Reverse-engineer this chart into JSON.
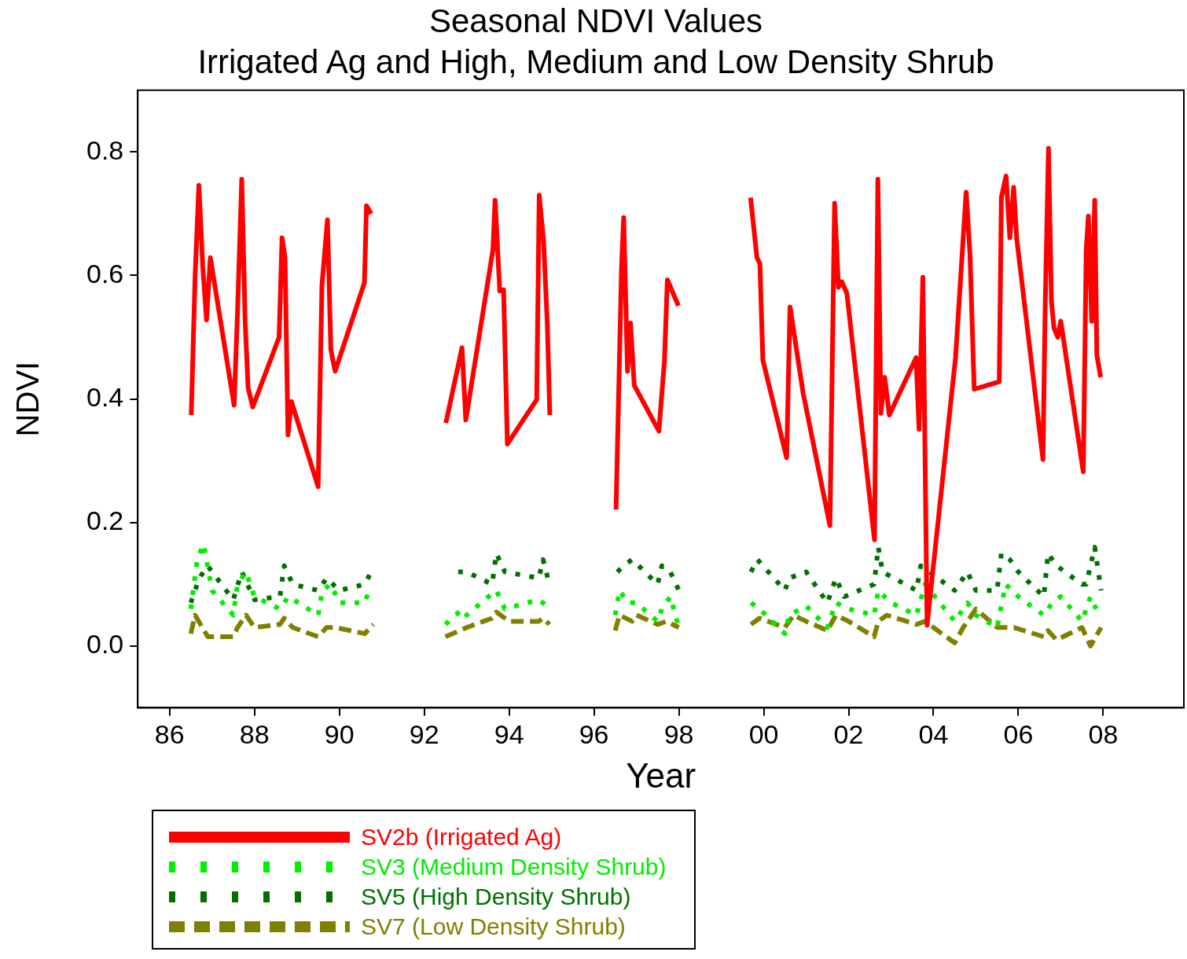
{
  "chart_data": {
    "type": "line",
    "title": "Seasonal NDVI Values",
    "subtitle": "Irrigated Ag and High, Medium and Low Density Shrub",
    "xlabel": "Year",
    "ylabel": "NDVI",
    "xlim": [
      1985.25,
      2009.9
    ],
    "ylim": [
      -0.1,
      0.9
    ],
    "xticks": [
      {
        "value": 1986,
        "label": "86"
      },
      {
        "value": 1988,
        "label": "88"
      },
      {
        "value": 1990,
        "label": "90"
      },
      {
        "value": 1992,
        "label": "92"
      },
      {
        "value": 1994,
        "label": "94"
      },
      {
        "value": 1996,
        "label": "96"
      },
      {
        "value": 1998,
        "label": "98"
      },
      {
        "value": 2000,
        "label": "00"
      },
      {
        "value": 2002,
        "label": "02"
      },
      {
        "value": 2004,
        "label": "04"
      },
      {
        "value": 2006,
        "label": "06"
      },
      {
        "value": 2008,
        "label": "08"
      }
    ],
    "yticks": [
      {
        "value": 0,
        "label": "0.0"
      },
      {
        "value": 0.2,
        "label": "0.2"
      },
      {
        "value": 0.4,
        "label": "0.4"
      },
      {
        "value": 0.6,
        "label": "0.6"
      },
      {
        "value": 0.8,
        "label": "0.8"
      }
    ],
    "legend": "bottom",
    "series": [
      {
        "name": "SV2b (Irrigated Ag)",
        "color": "#ff0000",
        "line_style": "solid",
        "x": [
          1986.51,
          1986.6,
          1986.69,
          1986.78,
          1986.87,
          1986.96,
          1987.52,
          1987.6,
          1987.7,
          1987.78,
          1987.85,
          1987.96,
          1988.58,
          1988.65,
          1988.72,
          1988.79,
          1988.87,
          1989.5,
          1989.59,
          1989.72,
          1989.8,
          1989.9,
          1990.59,
          1990.64,
          1990.75,
          1991.5,
          1992.51,
          1992.89,
          1992.98,
          1993.62,
          1993.67,
          1993.78,
          1993.87,
          1993.96,
          1994.65,
          1994.71,
          1994.81,
          1994.9,
          1994.96,
          1995.7,
          1996.52,
          1996.65,
          1996.7,
          1996.79,
          1996.86,
          1996.95,
          1997.53,
          1997.66,
          1997.73,
          1997.99,
          1998.8,
          1999.69,
          1999.84,
          1999.91,
          1999.98,
          2000.54,
          2000.62,
          2000.93,
          2001.56,
          2001.67,
          2001.76,
          2001.84,
          2001.96,
          2002.61,
          2002.69,
          2002.76,
          2002.85,
          2002.96,
          2003.59,
          2003.66,
          2003.75,
          2003.85,
          2004.52,
          2004.77,
          2004.86,
          2004.96,
          2005.55,
          2005.6,
          2005.71,
          2005.8,
          2005.89,
          2005.96,
          2006.58,
          2006.63,
          2006.71,
          2006.78,
          2006.84,
          2006.93,
          2007.0,
          2007.53,
          2007.6,
          2007.65,
          2007.73,
          2007.8,
          2007.85,
          2007.94
        ],
        "values": [
          0.374,
          0.597,
          0.746,
          0.616,
          0.528,
          0.629,
          0.39,
          0.539,
          0.756,
          0.526,
          0.418,
          0.387,
          0.5,
          0.661,
          0.629,
          0.342,
          0.396,
          0.258,
          0.584,
          0.69,
          0.48,
          0.445,
          0.588,
          0.713,
          0.7,
          null,
          0.361,
          0.483,
          0.366,
          0.642,
          0.722,
          0.575,
          0.577,
          0.327,
          0.399,
          0.73,
          0.658,
          0.523,
          0.374,
          null,
          0.221,
          0.614,
          0.694,
          0.445,
          0.523,
          0.422,
          0.348,
          0.461,
          0.593,
          0.551,
          null,
          0.726,
          0.629,
          0.619,
          0.463,
          0.305,
          0.549,
          0.409,
          0.195,
          0.717,
          0.581,
          0.59,
          0.571,
          0.172,
          0.756,
          0.377,
          0.435,
          0.374,
          0.467,
          0.351,
          0.597,
          0.034,
          0.467,
          0.735,
          0.636,
          0.416,
          0.428,
          0.726,
          0.761,
          0.661,
          0.743,
          0.661,
          0.302,
          0.539,
          0.806,
          0.558,
          0.515,
          0.5,
          0.526,
          0.282,
          0.642,
          0.696,
          0.526,
          0.722,
          0.471,
          0.435
        ]
      },
      {
        "name": "SV3 (Medium Density Shrub)",
        "color": "#00ee00",
        "line_style": "dotted",
        "x": [
          1986.5,
          1986.65,
          1986.8,
          1987.0,
          1987.5,
          1987.6,
          1987.8,
          1988.0,
          1988.6,
          1988.8,
          1989.5,
          1989.6,
          1989.8,
          1990.0,
          1990.6,
          1990.7,
          1991.5,
          1992.5,
          1992.9,
          1993.0,
          1993.6,
          1993.7,
          1993.9,
          1994.7,
          1994.9,
          1995.7,
          1996.5,
          1996.6,
          1996.8,
          1997.0,
          1997.5,
          1997.6,
          1997.8,
          1998.0,
          1998.8,
          1999.7,
          1999.9,
          2000.5,
          2000.6,
          2001.0,
          2001.5,
          2001.7,
          2002.0,
          2002.6,
          2002.7,
          2003.0,
          2003.6,
          2003.8,
          2004.5,
          2004.8,
          2005.0,
          2005.5,
          2005.7,
          2006.0,
          2006.6,
          2006.8,
          2007.0,
          2007.5,
          2007.7,
          2007.9
        ],
        "values": [
          0.06,
          0.14,
          0.165,
          0.09,
          0.05,
          0.1,
          0.12,
          0.08,
          0.06,
          0.08,
          0.05,
          0.09,
          0.1,
          0.07,
          0.07,
          0.09,
          null,
          0.035,
          0.06,
          0.05,
          0.085,
          0.09,
          0.06,
          0.075,
          0.065,
          null,
          0.05,
          0.09,
          0.07,
          0.07,
          0.04,
          0.06,
          0.08,
          0.03,
          null,
          0.07,
          0.06,
          0.02,
          0.05,
          0.065,
          0.03,
          0.07,
          0.06,
          0.05,
          0.09,
          0.07,
          0.05,
          0.1,
          0.04,
          0.07,
          0.05,
          0.03,
          0.1,
          0.08,
          0.05,
          0.07,
          0.08,
          0.04,
          0.08,
          0.05
        ]
      },
      {
        "name": "SV5 (High Density Shrub)",
        "color": "#007000",
        "line_style": "dotted",
        "x": [
          1986.5,
          1986.7,
          1986.9,
          1987.0,
          1987.5,
          1987.7,
          1987.9,
          1988.0,
          1988.6,
          1988.7,
          1988.9,
          1989.5,
          1989.7,
          1990.0,
          1990.6,
          1990.75,
          1991.5,
          1992.8,
          1993.0,
          1993.6,
          1993.7,
          1993.9,
          1994.7,
          1994.8,
          1994.95,
          1995.7,
          1996.55,
          1996.7,
          1996.9,
          1997.5,
          1997.6,
          1997.8,
          1998.0,
          1998.8,
          1999.7,
          1999.85,
          2000.5,
          2000.6,
          2001.0,
          2001.5,
          2001.7,
          2001.9,
          2002.6,
          2002.7,
          2002.8,
          2003.6,
          2003.7,
          2003.9,
          2004.5,
          2004.8,
          2005.0,
          2005.5,
          2005.6,
          2005.8,
          2006.0,
          2006.6,
          2006.7,
          2006.9,
          2007.5,
          2007.6,
          2007.8,
          2007.95
        ],
        "values": [
          0.07,
          0.11,
          0.13,
          0.12,
          0.075,
          0.12,
          0.09,
          0.075,
          0.08,
          0.13,
          0.1,
          0.09,
          0.11,
          0.09,
          0.1,
          0.12,
          null,
          0.12,
          0.12,
          0.1,
          0.15,
          0.12,
          0.11,
          0.14,
          0.1,
          null,
          0.12,
          0.13,
          0.14,
          0.1,
          0.13,
          0.12,
          0.09,
          null,
          0.12,
          0.14,
          0.09,
          0.11,
          0.12,
          0.07,
          0.11,
          0.08,
          0.1,
          0.16,
          0.12,
          0.09,
          0.13,
          0.12,
          0.09,
          0.12,
          0.09,
          0.09,
          0.15,
          0.14,
          0.12,
          0.08,
          0.15,
          0.13,
          0.1,
          0.1,
          0.16,
          0.09
        ]
      },
      {
        "name": "SV7 (Low Density Shrub)",
        "color": "#808000",
        "line_style": "dashed",
        "x": [
          1986.5,
          1986.6,
          1986.9,
          1987.0,
          1987.5,
          1987.6,
          1987.8,
          1988.0,
          1988.6,
          1988.7,
          1988.9,
          1989.5,
          1989.7,
          1989.9,
          1990.6,
          1990.8,
          1991.5,
          1992.5,
          1993.0,
          1993.6,
          1993.7,
          1994.0,
          1994.7,
          1994.8,
          1994.95,
          1995.7,
          1996.5,
          1996.6,
          1996.9,
          1997.0,
          1997.5,
          1997.7,
          1998.0,
          1998.8,
          1999.7,
          1999.9,
          2000.5,
          2000.7,
          2001.0,
          2001.5,
          2001.7,
          2002.0,
          2002.6,
          2002.7,
          2002.9,
          2003.6,
          2003.8,
          2004.5,
          2004.7,
          2005.0,
          2005.5,
          2005.6,
          2005.9,
          2006.6,
          2006.7,
          2006.9,
          2007.5,
          2007.7,
          2007.95
        ],
        "values": [
          0.02,
          0.05,
          0.015,
          0.015,
          0.015,
          0.03,
          0.05,
          0.03,
          0.035,
          0.045,
          0.03,
          0.015,
          0.03,
          0.03,
          0.02,
          0.035,
          null,
          0.015,
          0.03,
          0.045,
          0.055,
          0.04,
          0.04,
          0.045,
          0.035,
          null,
          0.025,
          0.05,
          0.04,
          0.05,
          0.035,
          0.04,
          0.03,
          null,
          0.035,
          0.045,
          0.03,
          0.05,
          0.04,
          0.025,
          0.05,
          0.04,
          0.015,
          0.04,
          0.05,
          0.035,
          0.04,
          0.005,
          0.03,
          0.06,
          0.03,
          0.03,
          0.03,
          0.015,
          0.025,
          0.01,
          0.03,
          0.0,
          0.03
        ]
      }
    ]
  }
}
